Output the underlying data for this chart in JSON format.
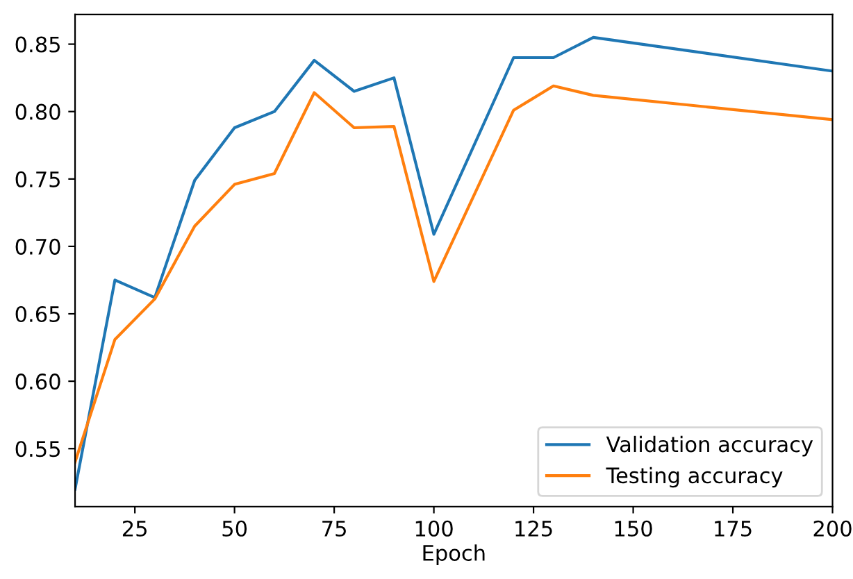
{
  "chart_data": {
    "type": "line",
    "xlabel": "Epoch",
    "x": [
      10,
      20,
      30,
      40,
      50,
      60,
      70,
      80,
      90,
      100,
      120,
      130,
      140,
      200
    ],
    "series": [
      {
        "name": "Validation accuracy",
        "color": "#1f77b4",
        "values": [
          0.52,
          0.675,
          0.662,
          0.749,
          0.788,
          0.8,
          0.838,
          0.815,
          0.825,
          0.709,
          0.84,
          0.84,
          0.855,
          0.83
        ]
      },
      {
        "name": "Testing accuracy",
        "color": "#ff7f0e",
        "values": [
          0.54,
          0.631,
          0.661,
          0.715,
          0.746,
          0.754,
          0.814,
          0.788,
          0.789,
          0.674,
          0.801,
          0.819,
          0.812,
          0.794
        ]
      }
    ],
    "xlim": [
      10,
      200
    ],
    "xticks": [
      25,
      50,
      75,
      100,
      125,
      150,
      175,
      200
    ],
    "ylim": [
      0.507,
      0.872
    ],
    "yticks": [
      {
        "value": 0.55,
        "label": "0.55"
      },
      {
        "value": 0.6,
        "label": "0.60"
      },
      {
        "value": 0.65,
        "label": "0.65"
      },
      {
        "value": 0.7,
        "label": "0.70"
      },
      {
        "value": 0.75,
        "label": "0.75"
      },
      {
        "value": 0.8,
        "label": "0.80"
      },
      {
        "value": 0.85,
        "label": "0.85"
      }
    ],
    "legend": "lower right",
    "grid": false,
    "marker": "none",
    "line_style": "solid"
  }
}
